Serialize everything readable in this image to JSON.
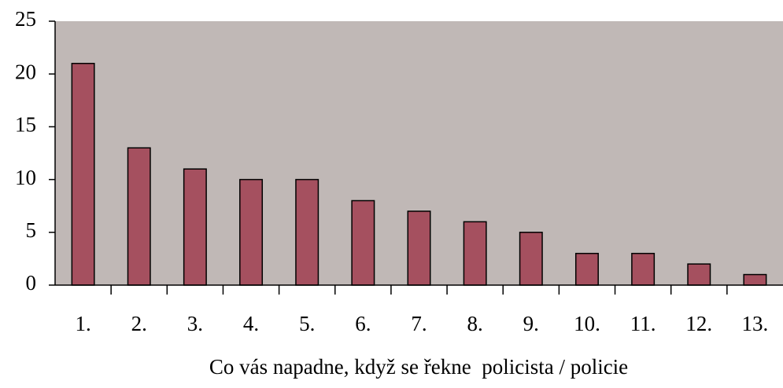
{
  "chart_data": {
    "type": "bar",
    "xlabel": "Co vás napadne, když se řekne  policista / policie",
    "categories": [
      "1.",
      "2.",
      "3.",
      "4.",
      "5.",
      "6.",
      "7.",
      "8.",
      "9.",
      "10.",
      "11.",
      "12.",
      "13."
    ],
    "values": [
      21,
      13,
      11,
      10,
      10,
      8,
      7,
      6,
      5,
      3,
      3,
      2,
      1
    ],
    "color": "#a5505f",
    "ylim": [
      0,
      25
    ],
    "yticks": [
      0,
      5,
      10,
      15,
      20,
      25
    ]
  }
}
